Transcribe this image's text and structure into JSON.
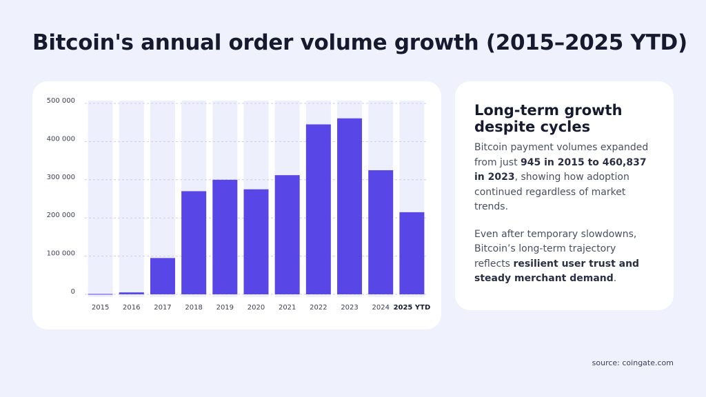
{
  "header": {
    "title": "Bitcoin's annual order volume growth (2015–2025 YTD)"
  },
  "chart_data": {
    "type": "bar",
    "categories": [
      "2015",
      "2016",
      "2017",
      "2018",
      "2019",
      "2020",
      "2021",
      "2022",
      "2023",
      "2024",
      "2025 YTD"
    ],
    "values": [
      945,
      5000,
      95000,
      270000,
      300000,
      275000,
      312000,
      445000,
      460837,
      325000,
      215000
    ],
    "color": "#5846e6",
    "ylim": [
      0,
      500000
    ],
    "yticks": [
      0,
      {
        "value": 100000,
        "label": "100 000"
      },
      {
        "value": 200000,
        "label": "200 000"
      },
      {
        "value": 300000,
        "label": "300 000"
      },
      {
        "value": 400000,
        "label": "400 000"
      },
      {
        "value": 500000,
        "label": "500 000"
      }
    ],
    "grid": true
  },
  "panel": {
    "heading": "Long-term growth despite cycles",
    "paragraphs": [
      [
        {
          "text": "Bitcoin payment volumes expanded from just ",
          "strong": false
        },
        {
          "text": "945 in 2015 to 460,837 in 2023",
          "strong": true
        },
        {
          "text": ", showing how adoption continued regardless of market trends.",
          "strong": false
        }
      ],
      [
        {
          "text": "Even after temporary slowdowns, Bitcoin’s long-term trajectory reflects ",
          "strong": false
        },
        {
          "text": "resilient user trust and steady merchant demand",
          "strong": true
        },
        {
          "text": ".",
          "strong": false
        }
      ]
    ]
  },
  "footer": {
    "source": "source: coingate.com"
  }
}
